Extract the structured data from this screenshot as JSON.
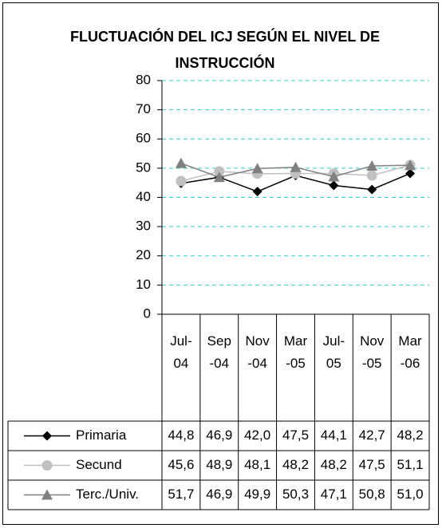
{
  "chart_data": {
    "type": "line",
    "title": "FLUCTUACIÓN DEL ICJ SEGÚN EL NIVEL DE INSTRUCCIÓN",
    "categories": [
      "Jul-04",
      "Sep-04",
      "Nov-04",
      "Mar-05",
      "Jul-05",
      "Nov-05",
      "Mar-06"
    ],
    "series": [
      {
        "name": "Primaria",
        "color": "#000000",
        "marker": "diamond",
        "values": [
          44.8,
          46.9,
          42.0,
          47.5,
          44.1,
          42.7,
          48.2
        ],
        "value_labels": [
          "44,8",
          "46,9",
          "42,0",
          "47,5",
          "44,1",
          "42,7",
          "48,2"
        ]
      },
      {
        "name": "Secund",
        "color": "#c0c0c0",
        "marker": "circle",
        "values": [
          45.6,
          48.9,
          48.1,
          48.2,
          48.2,
          47.5,
          51.1
        ],
        "value_labels": [
          "45,6",
          "48,9",
          "48,1",
          "48,2",
          "48,2",
          "47,5",
          "51,1"
        ]
      },
      {
        "name": "Terc./Univ.",
        "color": "#808080",
        "marker": "triangle",
        "values": [
          51.7,
          46.9,
          49.9,
          50.3,
          47.1,
          50.8,
          51.0
        ],
        "value_labels": [
          "51,7",
          "46,9",
          "49,9",
          "50,3",
          "47,1",
          "50,8",
          "51,0"
        ]
      }
    ],
    "ylim": [
      0,
      80
    ],
    "yticks": [
      0,
      10,
      20,
      30,
      40,
      50,
      60,
      70,
      80
    ],
    "grid": true,
    "grid_color": "#33cccc"
  }
}
